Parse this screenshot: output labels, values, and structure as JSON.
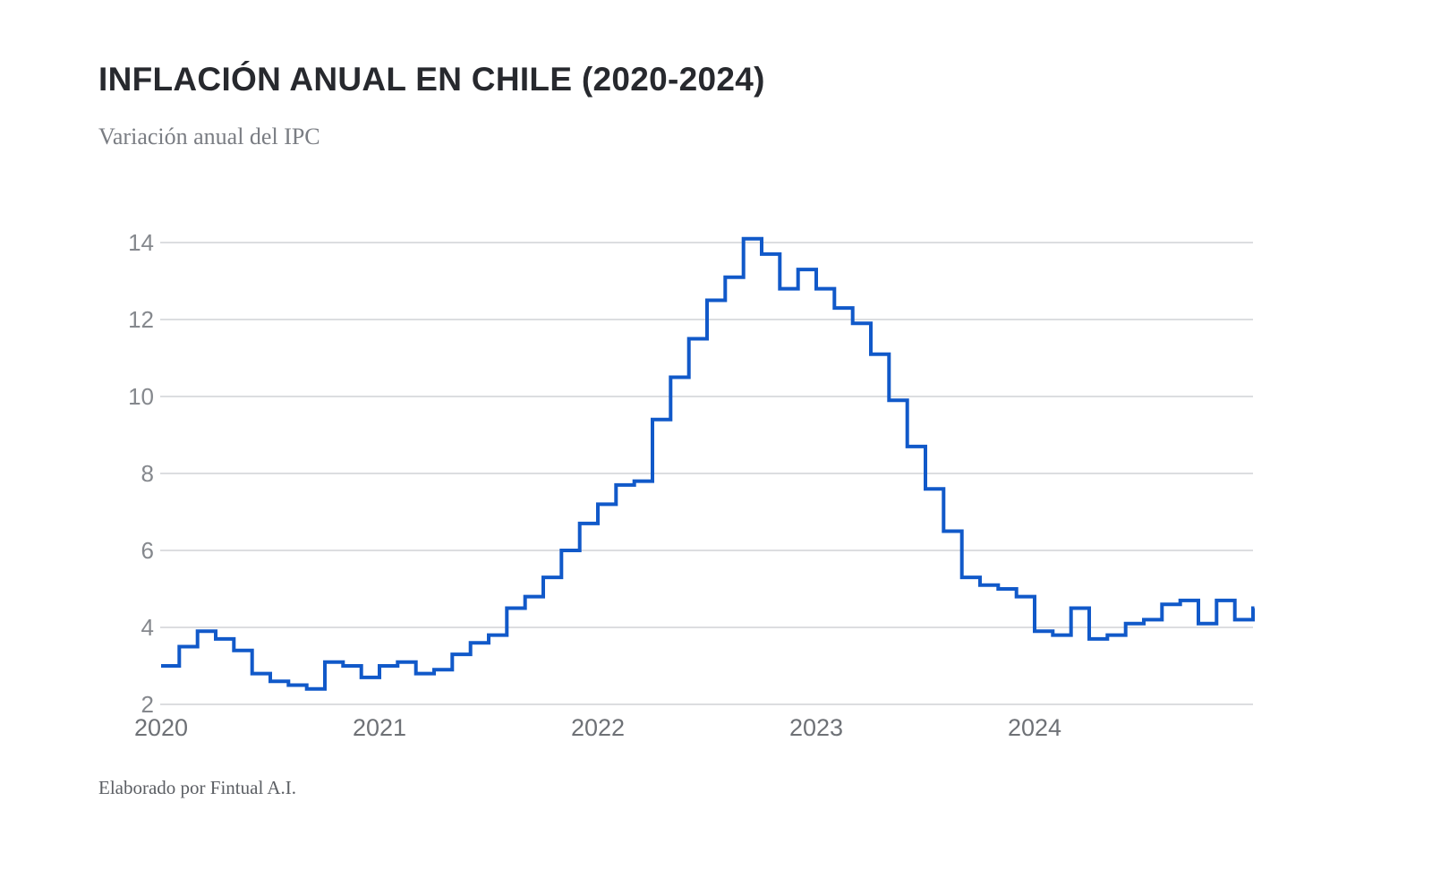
{
  "title": "INFLACIÓN ANUAL EN CHILE (2020-2024)",
  "subtitle": "Variación anual del IPC",
  "footer": "Elaborado por Fintual A.I.",
  "colors": {
    "line": "#1159c9",
    "grid": "#d0d2d5",
    "y_label": "#85888d",
    "x_label": "#6e7176",
    "title": "#27292e",
    "subtitle": "#7a7d83",
    "footer": "#5b5e63",
    "background": "#ffffff"
  },
  "chart_data": {
    "type": "line",
    "step": "step-after",
    "title": "INFLACIÓN ANUAL EN CHILE (2020-2024)",
    "subtitle": "Variación anual del IPC",
    "xlabel": "",
    "ylabel": "",
    "legend": "none",
    "grid": "horizontal",
    "x_start": "2020-01",
    "x_interval": "month",
    "x_tick_labels": [
      "2020",
      "2021",
      "2022",
      "2023",
      "2024"
    ],
    "y_tick_labels": [
      "2",
      "4",
      "6",
      "8",
      "10",
      "12",
      "14"
    ],
    "y_ticks": [
      2,
      4,
      6,
      8,
      10,
      12,
      14
    ],
    "ylim": [
      2,
      14.6
    ],
    "series": [
      {
        "name": "Variación anual del IPC (%)",
        "values": [
          3.0,
          3.5,
          3.9,
          3.7,
          3.4,
          2.8,
          2.6,
          2.5,
          2.4,
          3.1,
          3.0,
          2.7,
          3.0,
          3.1,
          2.8,
          2.9,
          3.3,
          3.6,
          3.8,
          4.5,
          4.8,
          5.3,
          6.0,
          6.7,
          7.2,
          7.7,
          7.8,
          9.4,
          10.5,
          11.5,
          12.5,
          13.1,
          14.1,
          13.7,
          12.8,
          13.3,
          12.8,
          12.3,
          11.9,
          11.1,
          9.9,
          8.7,
          7.6,
          6.5,
          5.3,
          5.1,
          5.0,
          4.8,
          3.9,
          3.8,
          4.5,
          3.7,
          3.8,
          4.1,
          4.2,
          4.6,
          4.7,
          4.1,
          4.7,
          4.2
        ]
      }
    ],
    "trailing_partial_value": 4.5
  }
}
